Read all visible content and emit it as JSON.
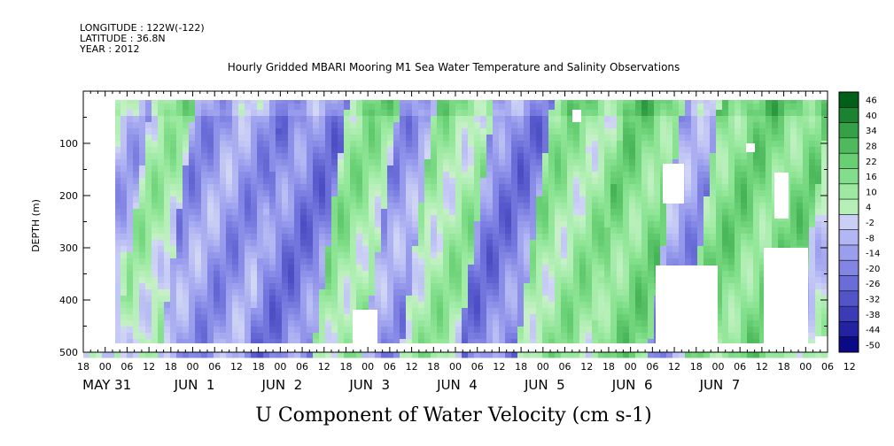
{
  "header": {
    "longitude": "LONGITUDE : 122W(-122)",
    "latitude": "LATITUDE : 36.8N",
    "year": "YEAR : 2012"
  },
  "chart_data": {
    "type": "heatmap",
    "title": "Hourly Gridded MBARI Mooring M1 Sea Water Temperature and Salinity Observations",
    "xlabel": "U Component of Water Velocity (cm s-1)",
    "ylabel": "DEPTH (m)",
    "ylim": [
      500,
      0
    ],
    "y_ticks": [
      100,
      200,
      300,
      400,
      500
    ],
    "x_range_hours": [
      -6,
      198
    ],
    "x_hour_ticks": [
      "18",
      "00",
      "06",
      "12",
      "18",
      "00",
      "06",
      "12",
      "18",
      "00",
      "06",
      "12",
      "18",
      "00",
      "06",
      "12",
      "18",
      "00",
      "06",
      "12",
      "18",
      "00",
      "06",
      "12",
      "18",
      "00",
      "06",
      "12",
      "18",
      "00",
      "06",
      "12",
      "18",
      "00",
      "06",
      "12"
    ],
    "x_day_labels": [
      {
        "label": "MAY 31",
        "hour": 0
      },
      {
        "label": "JUN  1",
        "hour": 24
      },
      {
        "label": "JUN  2",
        "hour": 48
      },
      {
        "label": "JUN  3",
        "hour": 72
      },
      {
        "label": "JUN  4",
        "hour": 96
      },
      {
        "label": "JUN  5",
        "hour": 120
      },
      {
        "label": "JUN  6",
        "hour": 144
      },
      {
        "label": "JUN  7",
        "hour": 168
      }
    ],
    "colorbar": {
      "levels": [
        "46",
        "40",
        "34",
        "28",
        "22",
        "16",
        "10",
        "4",
        "-2",
        "-8",
        "-14",
        "-20",
        "-26",
        "-32",
        "-38",
        "-44",
        "-50"
      ],
      "min": -50,
      "max": 46
    },
    "dominant_bands": [
      {
        "from_hour": 0,
        "to_hour": 12,
        "sign": "negative",
        "approx_value": -8
      },
      {
        "from_hour": 12,
        "to_hour": 24,
        "sign": "positive",
        "approx_value": 6
      },
      {
        "from_hour": 24,
        "to_hour": 48,
        "sign": "negative",
        "approx_value": -14
      },
      {
        "from_hour": 48,
        "to_hour": 66,
        "sign": "negative",
        "approx_value": -20
      },
      {
        "from_hour": 66,
        "to_hour": 80,
        "sign": "positive",
        "approx_value": 10
      },
      {
        "from_hour": 80,
        "to_hour": 90,
        "sign": "negative",
        "approx_value": -14
      },
      {
        "from_hour": 90,
        "to_hour": 106,
        "sign": "positive",
        "approx_value": 8
      },
      {
        "from_hour": 106,
        "to_hour": 122,
        "sign": "negative",
        "approx_value": -20
      },
      {
        "from_hour": 122,
        "to_hour": 142,
        "sign": "positive",
        "approx_value": 10
      },
      {
        "from_hour": 142,
        "to_hour": 158,
        "sign": "positive",
        "approx_value": 16
      },
      {
        "from_hour": 158,
        "to_hour": 168,
        "sign": "negative",
        "approx_value": -14
      },
      {
        "from_hour": 168,
        "to_hour": 198,
        "sign": "positive",
        "approx_value": 16
      }
    ]
  }
}
